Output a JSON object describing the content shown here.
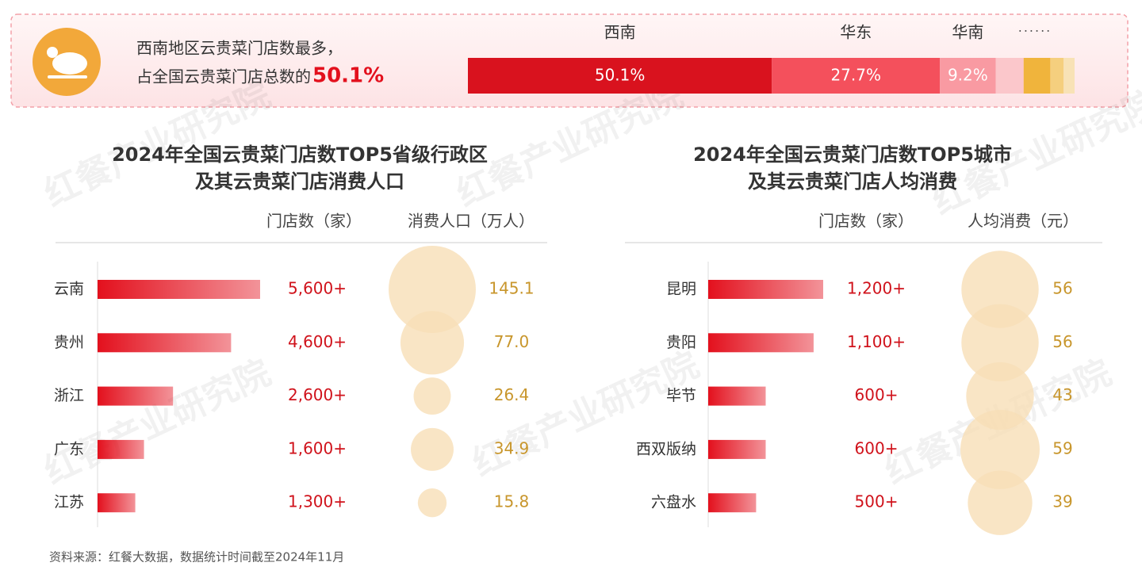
{
  "chart_data": [
    {
      "type": "share_bar",
      "annotation": [
        "西南地区云贵菜门店数最多，",
        "占全国云贵菜门店总数的"
      ],
      "highlight": "50.1%",
      "more_label": "······",
      "categories": [
        "西南",
        "华东",
        "华南",
        null,
        null,
        null,
        null
      ],
      "values": [
        50.1,
        27.7,
        9.2,
        4.6,
        4.4,
        2.2,
        1.8
      ],
      "value_labels": [
        "50.1%",
        "27.7%",
        "9.2%",
        null,
        null,
        null,
        null
      ],
      "colors": [
        "#d9121e",
        "#f4505c",
        "#f99aa2",
        "#fbc7cb",
        "#f0b43c",
        "#f5cf7e",
        "#f8e2b6"
      ]
    },
    {
      "type": "bar_bubble",
      "title": [
        "2024年全国云贵菜门店数TOP5省级行政区",
        "及其云贵菜门店消费人口"
      ],
      "categories": [
        "云南",
        "贵州",
        "浙江",
        "广东",
        "江苏"
      ],
      "series": [
        {
          "name": "门店数（家）",
          "color": "#e3101d",
          "values": [
            5600,
            4600,
            2600,
            1600,
            1300
          ],
          "value_labels": [
            "5,600+",
            "4,600+",
            "2,600+",
            "1,600+",
            "1,300+"
          ]
        },
        {
          "name": "消费人口（万人）",
          "color": "#f7dfb6",
          "values": [
            145.1,
            77.0,
            26.4,
            34.9,
            15.8
          ],
          "value_labels": [
            "145.1",
            "77.0",
            "26.4",
            "34.9",
            "15.8"
          ]
        }
      ]
    },
    {
      "type": "bar_bubble",
      "title": [
        "2024年全国云贵菜门店数TOP5城市",
        "及其云贵菜门店人均消费"
      ],
      "categories": [
        "昆明",
        "贵阳",
        "毕节",
        "西双版纳",
        "六盘水"
      ],
      "series": [
        {
          "name": "门店数（家）",
          "color": "#e3101d",
          "values": [
            1200,
            1100,
            600,
            600,
            500
          ],
          "value_labels": [
            "1,200+",
            "1,100+",
            "600+",
            "600+",
            "500+"
          ]
        },
        {
          "name": "人均消费（元）",
          "color": "#f7dfb6",
          "values": [
            56,
            56,
            43,
            59,
            39
          ]
        }
      ]
    }
  ],
  "watermark": "红餐产业研究院",
  "source": "资料来源：红餐大数据，数据统计时间截至2024年11月"
}
